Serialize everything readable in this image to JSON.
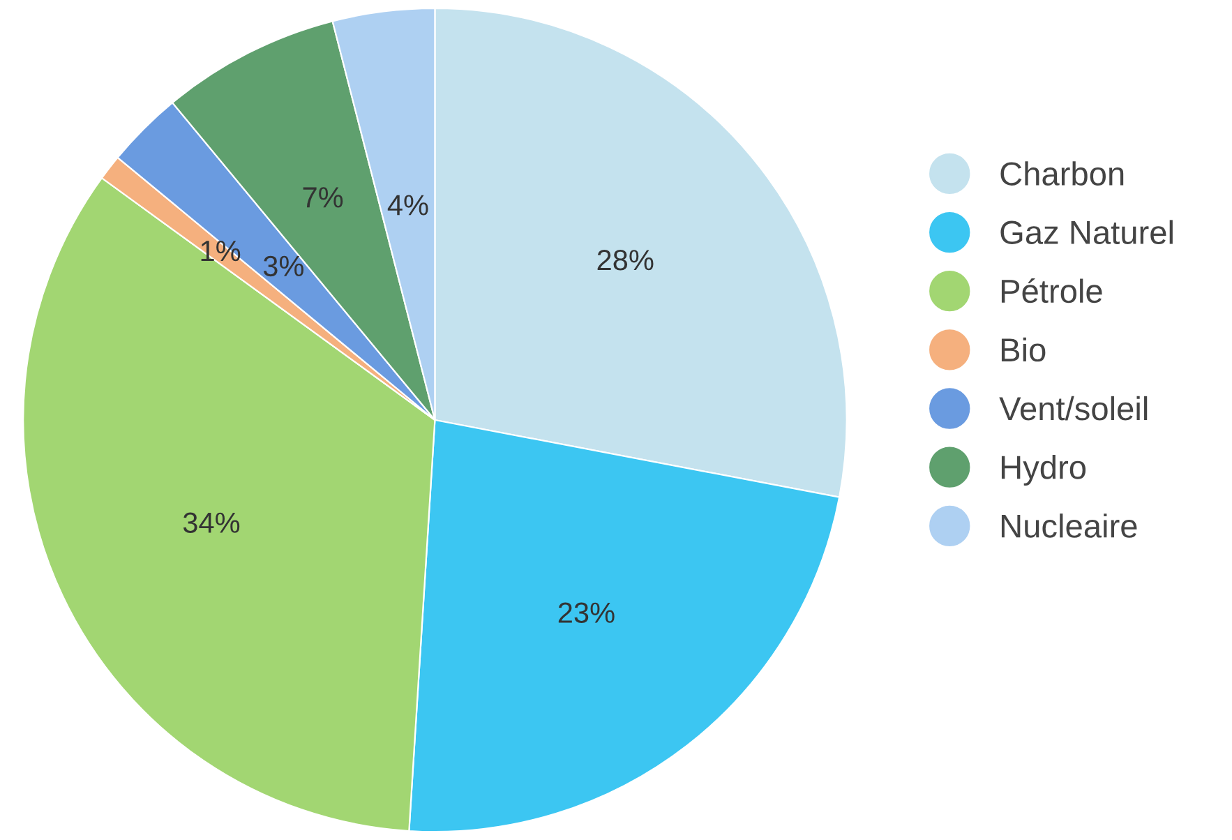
{
  "chart_data": {
    "type": "pie",
    "categories": [
      "Charbon",
      "Gaz Naturel",
      "Pétrole",
      "Bio",
      "Vent/soleil",
      "Hydro",
      "Nucleaire"
    ],
    "values": [
      28,
      23,
      34,
      1,
      3,
      7,
      4
    ],
    "colors": [
      "#c4e2ee",
      "#3cc6f2",
      "#a2d672",
      "#f5b07e",
      "#6a9be0",
      "#5fa06e",
      "#aed0f2"
    ],
    "value_labels": [
      "28%",
      "23%",
      "34%",
      "1%",
      "3%",
      "7%",
      "4%"
    ],
    "legend": "right"
  }
}
